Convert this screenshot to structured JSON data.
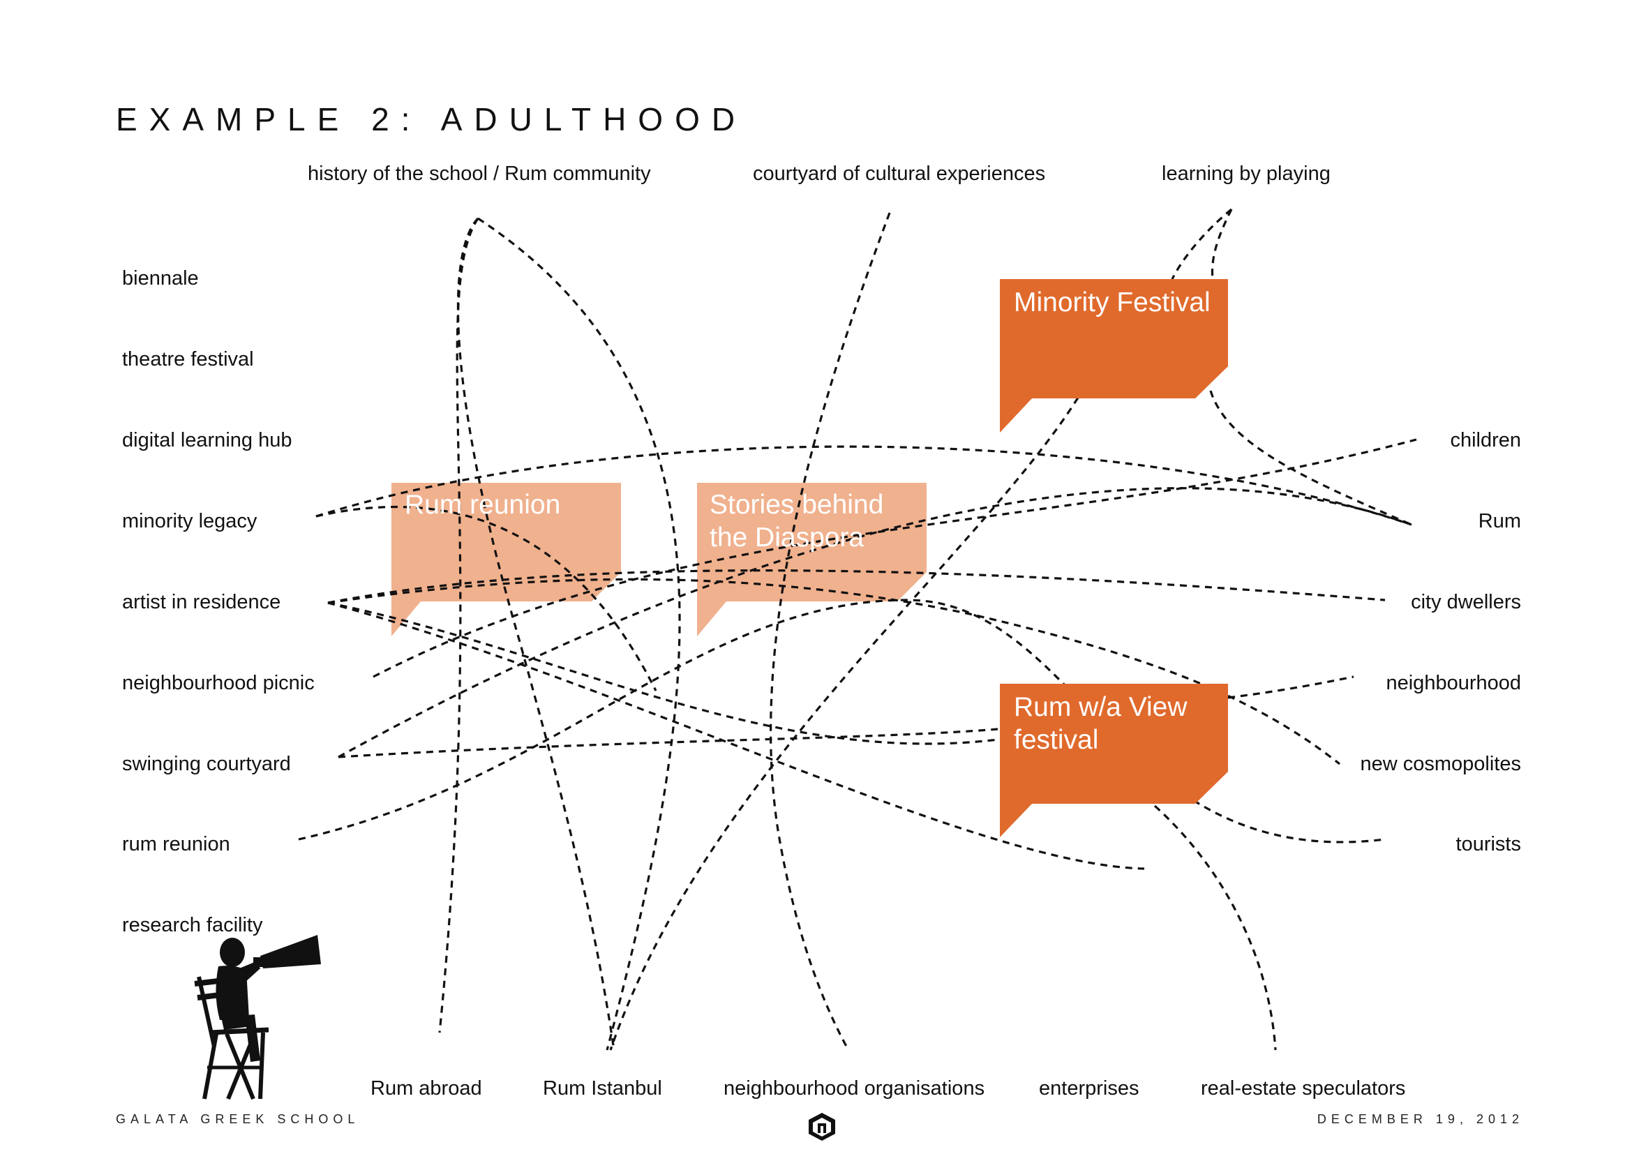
{
  "title": "EXAMPLE 2: ADULTHOOD",
  "top_labels": [
    "history of the school / Rum community",
    "courtyard of cultural experiences",
    "learning by playing"
  ],
  "left_labels": [
    "biennale",
    "theatre festival",
    "digital learning hub",
    "minority legacy",
    "artist in residence",
    "neighbourhood picnic",
    "swinging courtyard",
    "rum reunion",
    "research facility"
  ],
  "right_labels": [
    "children",
    "Rum",
    "city dwellers",
    "neighbourhood",
    "new cosmopolites",
    "tourists"
  ],
  "bottom_labels": [
    "Rum abroad",
    "Rum Istanbul",
    "neighbourhood organisations",
    "enterprises",
    "real-estate speculators"
  ],
  "bubbles": {
    "minority_festival": "Minority Festival",
    "rum_reunion": "Rum reunion",
    "stories": "Stories behind the Diaspora",
    "rum_view": "Rum w/a View festival"
  },
  "colors": {
    "strong_orange": "#e06a2c",
    "light_orange": "#f0b18e",
    "line": "#111111"
  },
  "footer": {
    "left": "GALATA GREEK SCHOOL",
    "right": "DECEMBER 19, 2012"
  },
  "icons": {
    "silhouette": "director-megaphone-icon",
    "logo": "school-logo-icon"
  }
}
